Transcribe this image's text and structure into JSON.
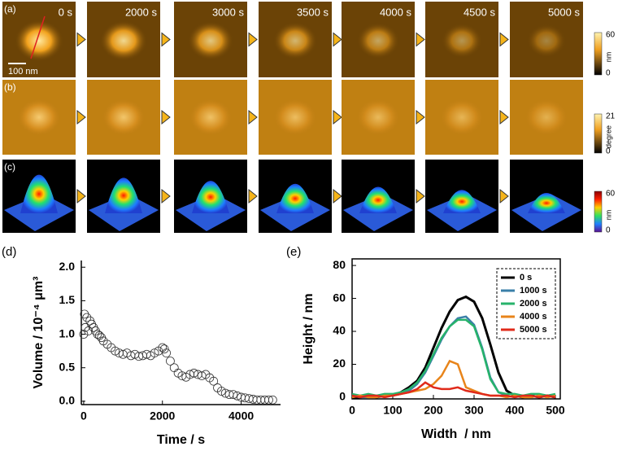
{
  "panels": {
    "row_labels": [
      "(a)",
      "(b)",
      "(c)"
    ],
    "times": [
      "0 s",
      "2000 s",
      "3000 s",
      "3500 s",
      "4000 s",
      "4500 s",
      "5000 s"
    ],
    "scale_bar": "100 nm",
    "colorbars": [
      {
        "max": 60,
        "unit": "nm",
        "min": 0
      },
      {
        "max": 21,
        "unit": "degree",
        "min": 0
      },
      {
        "max": 60,
        "unit": "nm",
        "min": 0
      }
    ]
  },
  "chart_data": [
    {
      "type": "scatter",
      "panel_label": "(d)",
      "x_label": "Time / s",
      "y_label": "Volume / 10⁻⁴ μm³",
      "color": "#333333",
      "x": [
        0,
        20,
        40,
        80,
        120,
        160,
        200,
        250,
        300,
        350,
        400,
        450,
        500,
        600,
        700,
        800,
        900,
        1000,
        1100,
        1200,
        1300,
        1400,
        1500,
        1600,
        1700,
        1800,
        1900,
        2000,
        2050,
        2100,
        2200,
        2300,
        2400,
        2500,
        2600,
        2700,
        2800,
        2900,
        3000,
        3100,
        3200,
        3300,
        3400,
        3500,
        3600,
        3700,
        3800,
        3900,
        4000,
        4100,
        4200,
        4300,
        4400,
        4500,
        4600,
        4700,
        4800
      ],
      "values": [
        1.0,
        1.3,
        1.1,
        1.25,
        1.05,
        1.2,
        1.15,
        1.1,
        1.05,
        1.0,
        0.98,
        0.95,
        0.9,
        0.85,
        0.8,
        0.75,
        0.72,
        0.7,
        0.72,
        0.68,
        0.7,
        0.67,
        0.68,
        0.7,
        0.68,
        0.72,
        0.75,
        0.8,
        0.78,
        0.72,
        0.6,
        0.5,
        0.42,
        0.38,
        0.36,
        0.4,
        0.42,
        0.4,
        0.38,
        0.4,
        0.35,
        0.3,
        0.2,
        0.15,
        0.12,
        0.1,
        0.1,
        0.08,
        0.06,
        0.05,
        0.04,
        0.03,
        0.02,
        0.02,
        0.02,
        0.02,
        0.02
      ],
      "xlim": [
        -60,
        5000
      ],
      "ylim": [
        -0.05,
        2.1
      ],
      "xticks": [
        0,
        2000,
        4000
      ],
      "yticks": [
        {
          "value": 0,
          "label": "0.0"
        },
        {
          "value": 0.5,
          "label": "0.5"
        },
        {
          "value": 1,
          "label": "1.0"
        },
        {
          "value": 1.5,
          "label": "1.5"
        },
        {
          "value": 2,
          "label": "2.0"
        }
      ],
      "box": false
    },
    {
      "type": "line",
      "panel_label": "(e)",
      "x_label": "Width  / nm",
      "y_label": "Height / nm",
      "x": [
        0,
        20,
        40,
        60,
        80,
        100,
        120,
        140,
        160,
        180,
        200,
        220,
        240,
        260,
        280,
        300,
        320,
        340,
        360,
        380,
        400,
        420,
        440,
        460,
        480,
        500
      ],
      "series": [
        {
          "name": "0 s",
          "color": "#000000",
          "values": [
            0,
            0,
            1,
            0,
            1,
            1,
            3,
            6,
            10,
            18,
            30,
            42,
            52,
            59,
            61,
            58,
            48,
            32,
            15,
            4,
            1,
            0,
            1,
            0,
            1,
            0
          ]
        },
        {
          "name": "1000 s",
          "color": "#3a7fa8",
          "values": [
            1,
            0,
            0,
            1,
            1,
            1,
            2,
            4,
            8,
            15,
            25,
            35,
            43,
            48,
            49,
            44,
            30,
            12,
            3,
            1,
            0,
            1,
            0,
            1,
            0,
            1
          ]
        },
        {
          "name": "2000 s",
          "color": "#27b36b",
          "values": [
            2,
            1,
            2,
            1,
            2,
            2,
            3,
            5,
            9,
            16,
            26,
            36,
            43,
            47,
            47,
            43,
            29,
            11,
            3,
            2,
            2,
            1,
            2,
            2,
            1,
            2
          ]
        },
        {
          "name": "4000 s",
          "color": "#e8841a",
          "values": [
            0,
            1,
            0,
            0,
            1,
            1,
            2,
            3,
            4,
            5,
            8,
            13,
            22,
            20,
            6,
            4,
            2,
            1,
            1,
            0,
            1,
            0,
            0,
            1,
            0,
            1
          ]
        },
        {
          "name": "5000 s",
          "color": "#e02a1a",
          "values": [
            1,
            0,
            1,
            1,
            0,
            1,
            2,
            3,
            5,
            9,
            6,
            5,
            5,
            6,
            4,
            3,
            2,
            1,
            1,
            1,
            0,
            1,
            1,
            0,
            1,
            0
          ]
        }
      ],
      "xlim": [
        0,
        512
      ],
      "ylim": [
        -1,
        84
      ],
      "xticks": [
        0,
        100,
        200,
        300,
        400,
        500
      ],
      "yticks": [
        0,
        20,
        40,
        60,
        80
      ],
      "box": true,
      "legend": "upper right"
    }
  ]
}
